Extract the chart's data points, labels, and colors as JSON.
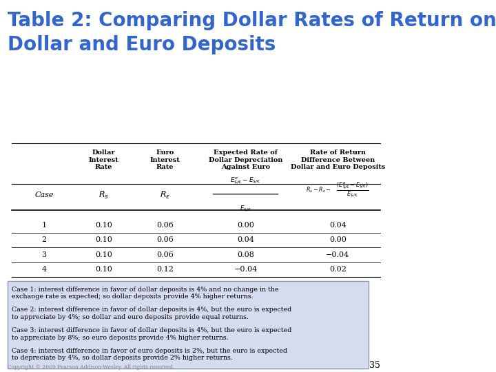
{
  "title_line1": "Table 2: Comparing Dollar Rates of Return on",
  "title_line2": "Dollar and Euro Deposits",
  "title_color": "#3366CC",
  "title_fontsize": 20,
  "background_color": "#FFFFFF",
  "table_bg": "#FFFFFF",
  "note_bg": "#D6DCF0",
  "note_border": "#8899BB",
  "col_headers": [
    "Dollar\nInterest\nRate",
    "Euro\nInterest\nRate",
    "Expected Rate of\nDollar Depreciation\nAgainst Euro",
    "Rate of Return\nDifference Between\nDollar and Euro Deposits"
  ],
  "row_label": "Case",
  "col0_label": "Case",
  "formula_row": [
    "$R_s$",
    "$R_\\epsilon$",
    "$\\frac{E^e_{\\$/\\euro} - E_{\\$/\\euro}}{E_{\\$/\\euro}}$",
    "$R_s - R_\\epsilon - \\frac{(E^e_{\\$/\\euro} - E_{\\$/\\euro})}{E_{\\$/\\euro}}$"
  ],
  "cases": [
    "1",
    "2",
    "3",
    "4"
  ],
  "col1": [
    "0.10",
    "0.10",
    "0.10",
    "0.10"
  ],
  "col2": [
    "0.06",
    "0.06",
    "0.06",
    "0.12"
  ],
  "col3": [
    "0.00",
    "0.04",
    "0.08",
    "−0.04"
  ],
  "col4": [
    "0.04",
    "0.00",
    "−0.04",
    "0.02"
  ],
  "notes": [
    "Case 1: interest difference in favor of dollar deposits is 4% and no change in the\nexchange rate is expected; so dollar deposits provide 4% higher returns.",
    "Case 2: interest difference in favor of dollar deposits is 4%, but the euro is expected\nto appreciate by 4%; so dollar and euro deposits provide equal returns.",
    "Case 3: interest difference in favor of dollar deposits is 4%, but the euro is expected\nto appreciate by 8%; so euro deposits provide 4% higher returns.",
    "Case 4: interest difference in favor of euro deposits is 2%, but the euro is expected\nto depreciate by 4%, so dollar deposits provide 2% higher returns."
  ],
  "footer_text": "Copyright © 2009 Pearson Addison-Wesley. All rights reserved.",
  "page_number": "35"
}
